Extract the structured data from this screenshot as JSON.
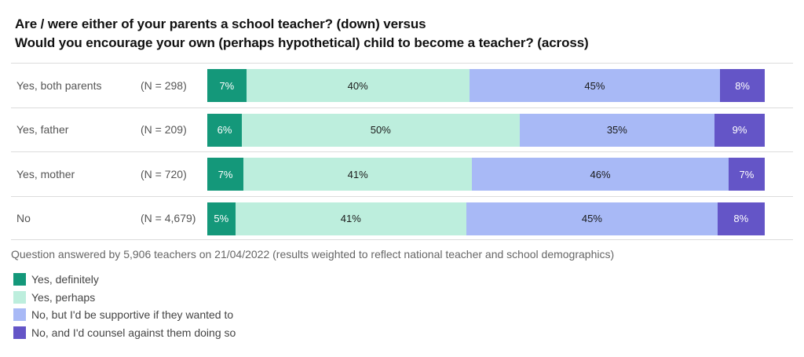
{
  "title": {
    "line1": "Are / were either of your parents a school teacher? (down) versus",
    "line2": "Would you encourage your own (perhaps hypothetical) child to become a teacher? (across)"
  },
  "footnote": "Question answered by 5,906 teachers on 21/04/2022 (results weighted to reflect national teacher and school demographics)",
  "legend": [
    {
      "label": "Yes, definitely",
      "color": "#14987a"
    },
    {
      "label": "Yes, perhaps",
      "color": "#bdeedd"
    },
    {
      "label": "No, but I'd be supportive if they wanted to",
      "color": "#a8b9f6"
    },
    {
      "label": "No, and I'd counsel against them doing so",
      "color": "#6455c7"
    }
  ],
  "rows": [
    {
      "label": "Yes, both parents",
      "n": "(N = 298)",
      "values": [
        "7%",
        "40%",
        "45%",
        "8%"
      ],
      "widths": [
        7,
        40,
        45,
        8
      ]
    },
    {
      "label": "Yes, father",
      "n": "(N = 209)",
      "values": [
        "6%",
        "50%",
        "35%",
        "9%"
      ],
      "widths": [
        6.2,
        49.8,
        35,
        9
      ]
    },
    {
      "label": "Yes, mother",
      "n": "(N = 720)",
      "values": [
        "7%",
        "41%",
        "46%",
        "7%"
      ],
      "widths": [
        6.5,
        41,
        46,
        6.5
      ]
    },
    {
      "label": "No",
      "n": "(N = 4,679)",
      "values": [
        "5%",
        "41%",
        "45%",
        "8%"
      ],
      "widths": [
        5,
        41.5,
        45,
        8.5
      ]
    }
  ],
  "chart_data": {
    "type": "bar",
    "orientation": "horizontal",
    "stacked": true,
    "title": "Are / were either of your parents a school teacher? (down) versus Would you encourage your own (perhaps hypothetical) child to become a teacher? (across)",
    "categories": [
      "Yes, both parents (N = 298)",
      "Yes, father (N = 209)",
      "Yes, mother (N = 720)",
      "No (N = 4,679)"
    ],
    "series": [
      {
        "name": "Yes, definitely",
        "values": [
          7,
          6,
          7,
          5
        ],
        "color": "#14987a"
      },
      {
        "name": "Yes, perhaps",
        "values": [
          40,
          50,
          41,
          41
        ],
        "color": "#bdeedd"
      },
      {
        "name": "No, but I'd be supportive if they wanted to",
        "values": [
          45,
          35,
          46,
          45
        ],
        "color": "#a8b9f6"
      },
      {
        "name": "No, and I'd counsel against them doing so",
        "values": [
          8,
          9,
          7,
          8
        ],
        "color": "#6455c7"
      }
    ],
    "xlabel": "",
    "ylabel": "",
    "xlim": [
      0,
      100
    ],
    "grid": false,
    "legend_position": "bottom-left",
    "annotation": "Question answered by 5,906 teachers on 21/04/2022 (results weighted to reflect national teacher and school demographics)"
  }
}
